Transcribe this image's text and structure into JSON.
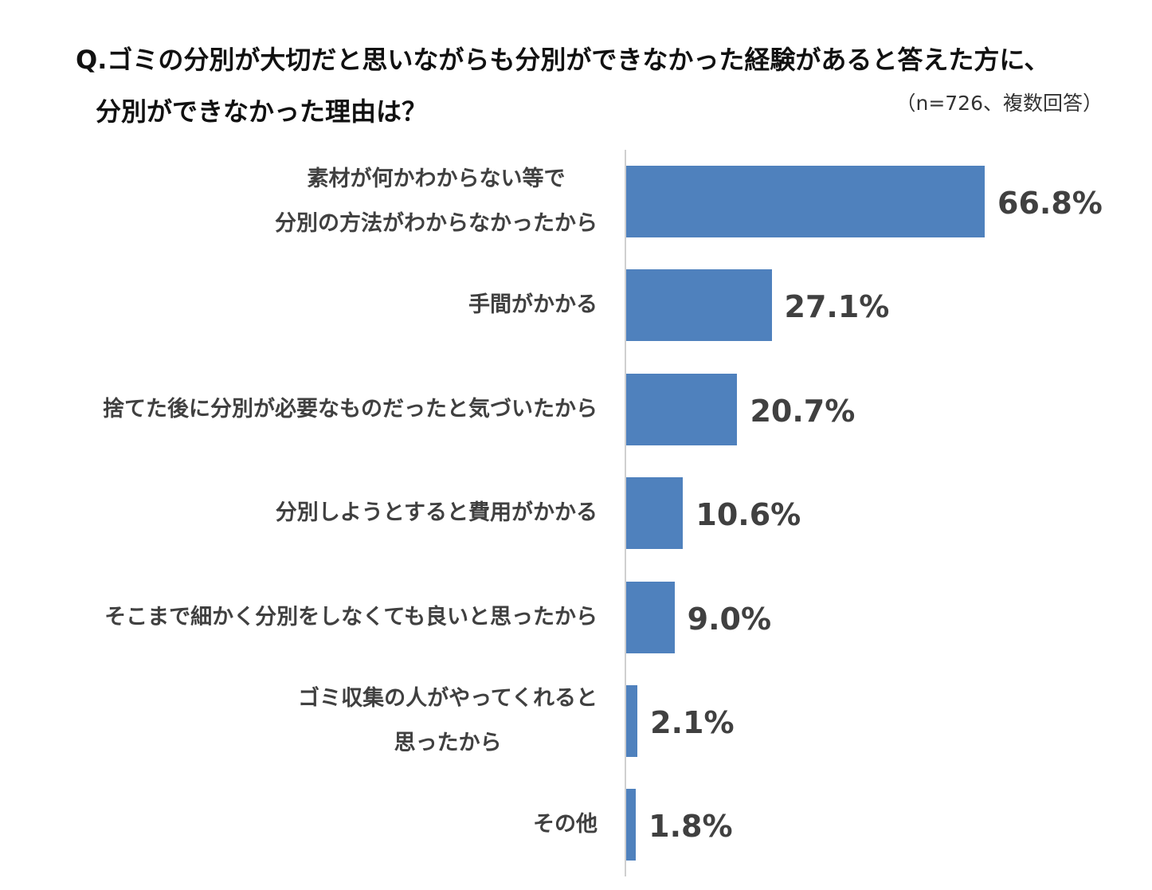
{
  "chart_data": {
    "type": "bar",
    "orientation": "horizontal",
    "title_line1": "Q.ゴミの分別が大切だと思いながらも分別ができなかった経験があると答えた方に、",
    "title_line2": "分別ができなかった理由は？",
    "note": "（n=726、複数回答）",
    "categories": [
      "素材が何かわからない等で\n分別の方法がわからなかったから",
      "手間がかかる",
      "捨てた後に分別が必要なものだったと気づいたから",
      "分別しようとすると費用がかかる",
      "そこまで細かく分別をしなくても良いと思ったから",
      "ゴミ収集の人がやってくれると\n思ったから",
      "その他"
    ],
    "values": [
      66.8,
      27.1,
      20.7,
      10.6,
      9.0,
      2.1,
      1.8
    ],
    "value_labels": [
      "66.8%",
      "27.1%",
      "20.7%",
      "10.6%",
      "9.0%",
      "2.1%",
      "1.8%"
    ],
    "unit": "%",
    "xlim": [
      0,
      100
    ],
    "grid": false,
    "bar_color": "#4f81bd",
    "text_color": "#404040"
  }
}
